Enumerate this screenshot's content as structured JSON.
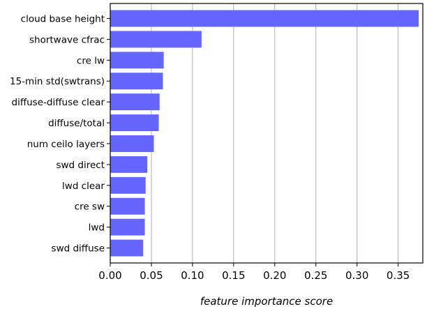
{
  "chart_data": {
    "type": "bar",
    "orientation": "horizontal",
    "categories": [
      "cloud base height",
      "shortwave cfrac",
      "cre lw",
      "15-min std(swtrans)",
      "diffuse-diffuse clear",
      "diffuse/total",
      "num ceilo layers",
      "swd direct",
      "lwd clear",
      "cre sw",
      "lwd",
      "swd diffuse"
    ],
    "values": [
      0.375,
      0.111,
      0.065,
      0.064,
      0.06,
      0.059,
      0.053,
      0.045,
      0.043,
      0.042,
      0.042,
      0.04
    ],
    "xlabel": "feature importance score",
    "ylabel": "",
    "xlim": [
      0.0,
      0.38
    ],
    "xticks": [
      "0.00",
      "0.05",
      "0.10",
      "0.15",
      "0.20",
      "0.25",
      "0.30",
      "0.35"
    ],
    "grid": "vertical",
    "bar_color": "#6666ff",
    "grid_color": "#b0b0b0"
  }
}
